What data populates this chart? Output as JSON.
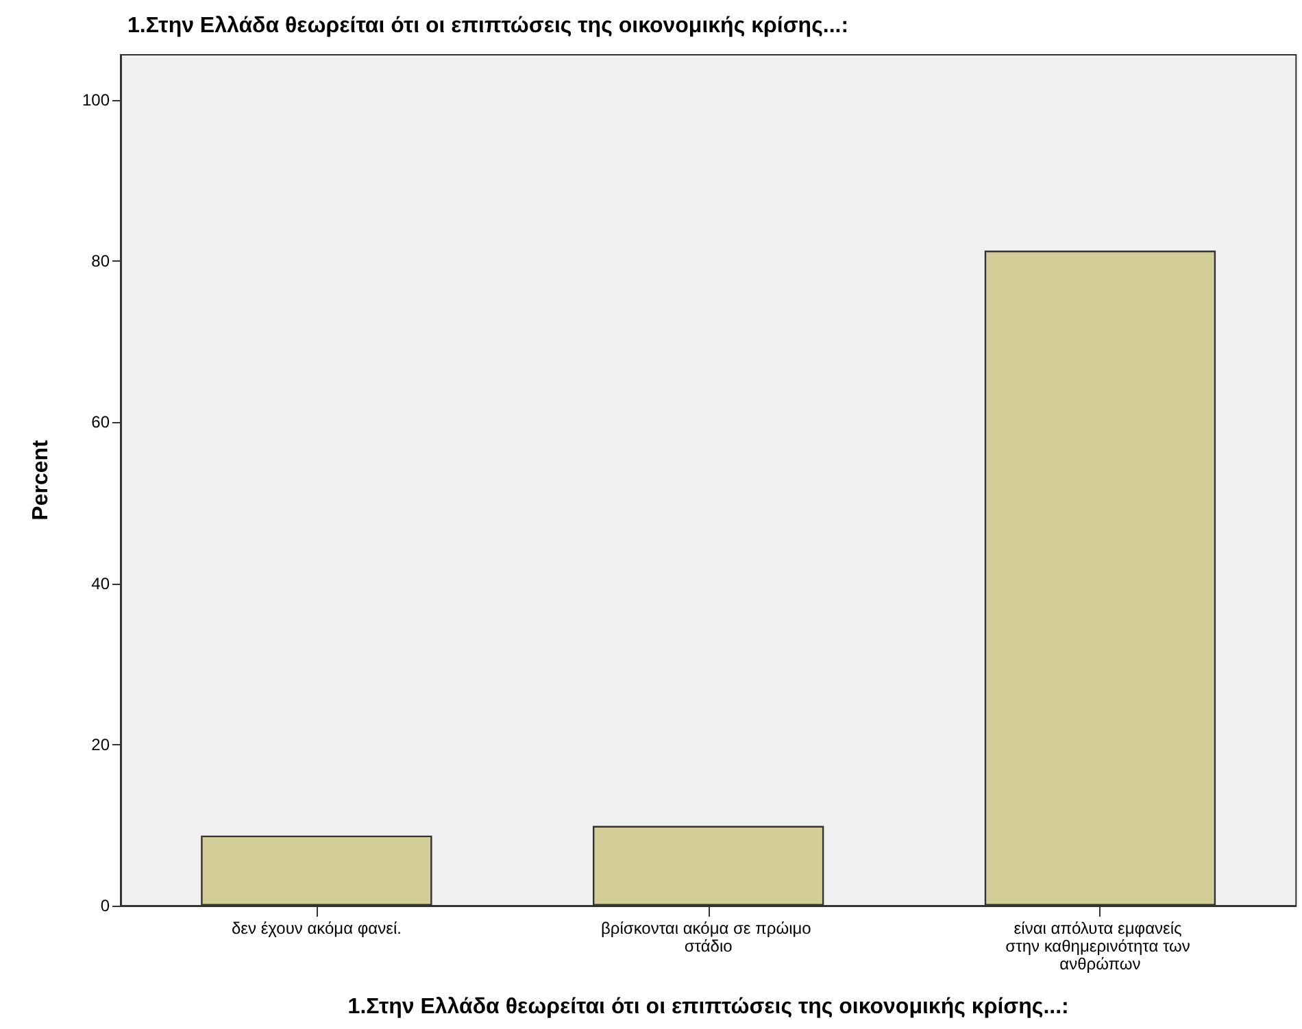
{
  "chart_data": {
    "type": "bar",
    "title": "1.Στην Ελλάδα θεωρείται ότι οι επιπτώσεις της οικονομικής κρίσης...:",
    "xlabel": "1.Στην Ελλάδα θεωρείται ότι οι επιπτώσεις της οικονομικής κρίσης...:",
    "ylabel": "Percent",
    "categories": [
      "δεν έχουν ακόμα φανεί.",
      "βρίσκονται ακόμα σε πρώιμο στάδιο",
      "είναι απόλυτα εμφανείς στην καθημερινότητα των ανθρώπων"
    ],
    "values": [
      8.7,
      9.9,
      81.3
    ],
    "color": "#d3ce97",
    "ylim": [
      0,
      105.6
    ],
    "yticks": [
      0,
      20,
      40,
      60,
      80,
      100
    ]
  }
}
